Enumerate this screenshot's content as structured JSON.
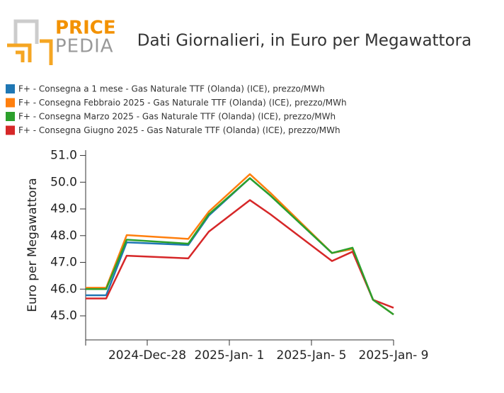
{
  "logo": {
    "part1": "PRICE",
    "part2": "PEDIA"
  },
  "chart_data": {
    "type": "line",
    "title": "Dati Giornalieri, in Euro per Megawattora",
    "y_label": "Euro per Megawattora",
    "x": [
      "2024-12-25",
      "2024-12-26",
      "2024-12-27",
      "2024-12-30",
      "2024-12-31",
      "2025-01-02",
      "2025-01-03",
      "2025-01-06",
      "2025-01-07",
      "2025-01-08",
      "2025-01-09"
    ],
    "xlim": [
      "2024-12-25",
      "2025-01-09"
    ],
    "xticks": [
      {
        "value": "2024-12-28",
        "label": "2024-Dec-28"
      },
      {
        "value": "2025-01-01",
        "label": "2025-Jan- 1"
      },
      {
        "value": "2025-01-05",
        "label": "2025-Jan- 5"
      },
      {
        "value": "2025-01-09",
        "label": "2025-Jan- 9"
      }
    ],
    "ylim": [
      44.1,
      51.2
    ],
    "yticks": [
      {
        "value": 45,
        "label": "45.0"
      },
      {
        "value": 46,
        "label": "46.0"
      },
      {
        "value": 47,
        "label": "47.0"
      },
      {
        "value": 48,
        "label": "48.0"
      },
      {
        "value": 49,
        "label": "49.0"
      },
      {
        "value": 50,
        "label": "50.0"
      },
      {
        "value": 51,
        "label": "51.0"
      }
    ],
    "series": [
      {
        "name": "F+ - Consegna a 1 mese - Gas Naturale TTF (Olanda) (ICE), prezzo/MWh",
        "color": "#1f77b4",
        "values": [
          45.77,
          45.77,
          47.75,
          47.65,
          48.75,
          50.15,
          49.5,
          47.35,
          47.5,
          45.6,
          45.05
        ]
      },
      {
        "name": "F+ - Consegna Febbraio 2025 - Gas Naturale TTF (Olanda) (ICE), prezzo/MWh",
        "color": "#ff7f0e",
        "values": [
          46.05,
          46.05,
          48.02,
          47.88,
          48.9,
          50.3,
          49.6,
          47.35,
          47.5,
          45.6,
          45.05
        ]
      },
      {
        "name": "F+ - Consegna Marzo 2025 - Gas Naturale TTF (Olanda) (ICE), prezzo/MWh",
        "color": "#2ca02c",
        "values": [
          46.0,
          46.0,
          47.85,
          47.7,
          48.8,
          50.15,
          49.5,
          47.35,
          47.55,
          45.6,
          45.05
        ]
      },
      {
        "name": "F+ - Consegna Giugno 2025 - Gas Naturale TTF (Olanda) (ICE), prezzo/MWh",
        "color": "#d62728",
        "values": [
          45.65,
          45.65,
          47.25,
          47.15,
          48.15,
          49.33,
          48.8,
          47.05,
          47.4,
          45.6,
          45.3
        ]
      }
    ]
  }
}
